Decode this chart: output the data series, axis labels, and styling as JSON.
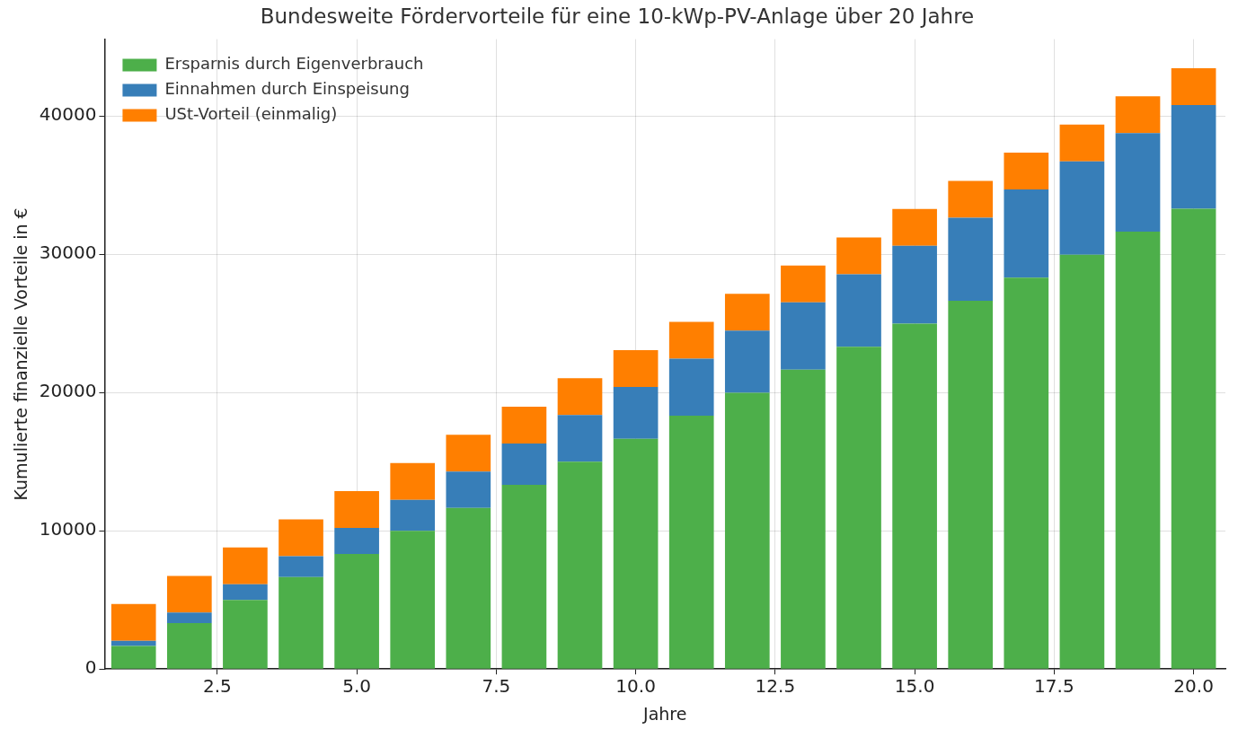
{
  "chart_data": {
    "type": "bar",
    "title": "Bundesweite Fördervorteile für eine 10-kWp-PV-Anlage über 20 Jahre",
    "xlabel": "Jahre",
    "ylabel": "Kumulierte finanzielle Vorteile in €",
    "x": [
      1,
      2,
      3,
      4,
      5,
      6,
      7,
      8,
      9,
      10,
      11,
      12,
      13,
      14,
      15,
      16,
      17,
      18,
      19,
      20
    ],
    "series": [
      {
        "name": "Ersparnis durch Eigenverbrauch",
        "color": "#4daf4a",
        "values": [
          1670,
          3330,
          5000,
          6660,
          8330,
          9990,
          11660,
          13320,
          14990,
          16650,
          18320,
          19980,
          21650,
          23310,
          24980,
          26640,
          28310,
          29970,
          31640,
          33300
        ]
      },
      {
        "name": "Einnahmen durch Einspeisung",
        "color": "#377eb8",
        "values": [
          380,
          750,
          1130,
          1500,
          1880,
          2250,
          2630,
          3000,
          3380,
          3750,
          4130,
          4500,
          4880,
          5250,
          5630,
          6000,
          6380,
          6750,
          7130,
          7500
        ]
      },
      {
        "name": "USt-Vorteil (einmalig)",
        "color": "#ff7f00",
        "values": [
          2660,
          2660,
          2660,
          2660,
          2660,
          2660,
          2660,
          2660,
          2660,
          2660,
          2660,
          2660,
          2660,
          2660,
          2660,
          2660,
          2660,
          2660,
          2660,
          2660
        ]
      }
    ],
    "stacked": true,
    "xlim": [
      0.48,
      20.57
    ],
    "xticks": [
      2.5,
      {
        "value": 5,
        "label": "5.0"
      },
      7.5,
      {
        "value": 10,
        "label": "10.0"
      },
      12.5,
      {
        "value": 15,
        "label": "15.0"
      },
      17.5,
      {
        "value": 20,
        "label": "20.0"
      }
    ],
    "ylim": [
      0,
      45560
    ],
    "yticks": [
      0,
      10000,
      20000,
      30000,
      40000
    ],
    "grid": true,
    "legend": "top left"
  }
}
